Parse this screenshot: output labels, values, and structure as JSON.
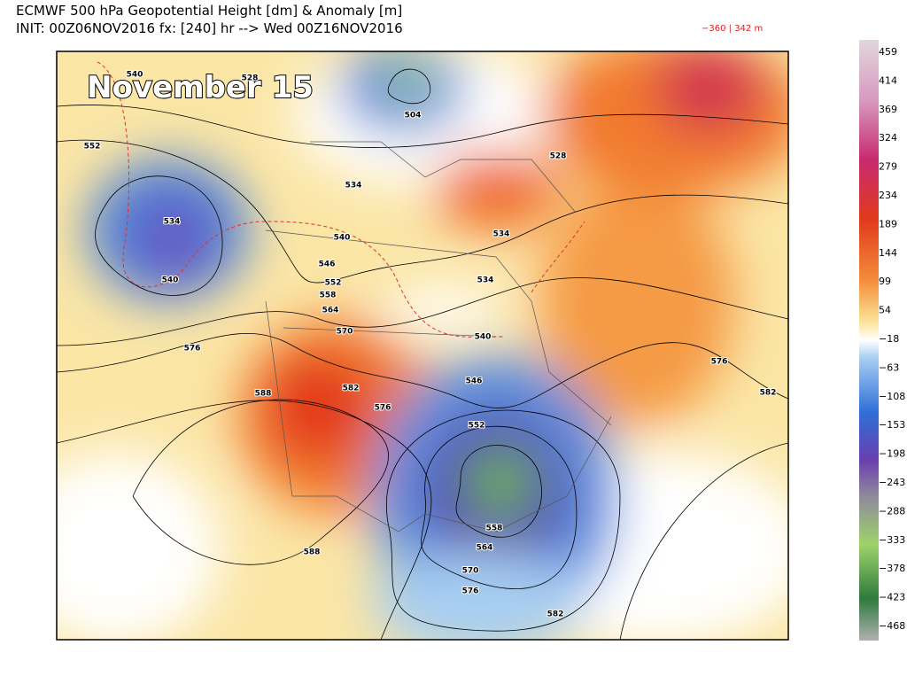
{
  "header": {
    "title": "ECMWF 500 hPa Geopotential Height [dm] & Anomaly [m]",
    "subtitle": "INIT: 00Z06NOV2016 fx: [240] hr --> Wed 00Z16NOV2016",
    "range_note": "−360 | 342 m"
  },
  "overlay_label": "November 15",
  "colorbar": {
    "labels": [
      "459",
      "414",
      "369",
      "324",
      "279",
      "234",
      "189",
      "144",
      "99",
      "54",
      "−18",
      "−63",
      "−108",
      "−153",
      "−198",
      "−243",
      "−288",
      "−333",
      "−378",
      "−423",
      "−468"
    ]
  },
  "contour_labels": [
    "540",
    "528",
    "552",
    "534",
    "540",
    "504",
    "528",
    "534",
    "534",
    "540",
    "546",
    "552",
    "558",
    "564",
    "570",
    "576",
    "534",
    "546",
    "540",
    "588",
    "582",
    "576",
    "552",
    "558",
    "564",
    "570",
    "576",
    "576",
    "582",
    "588",
    "582"
  ]
}
